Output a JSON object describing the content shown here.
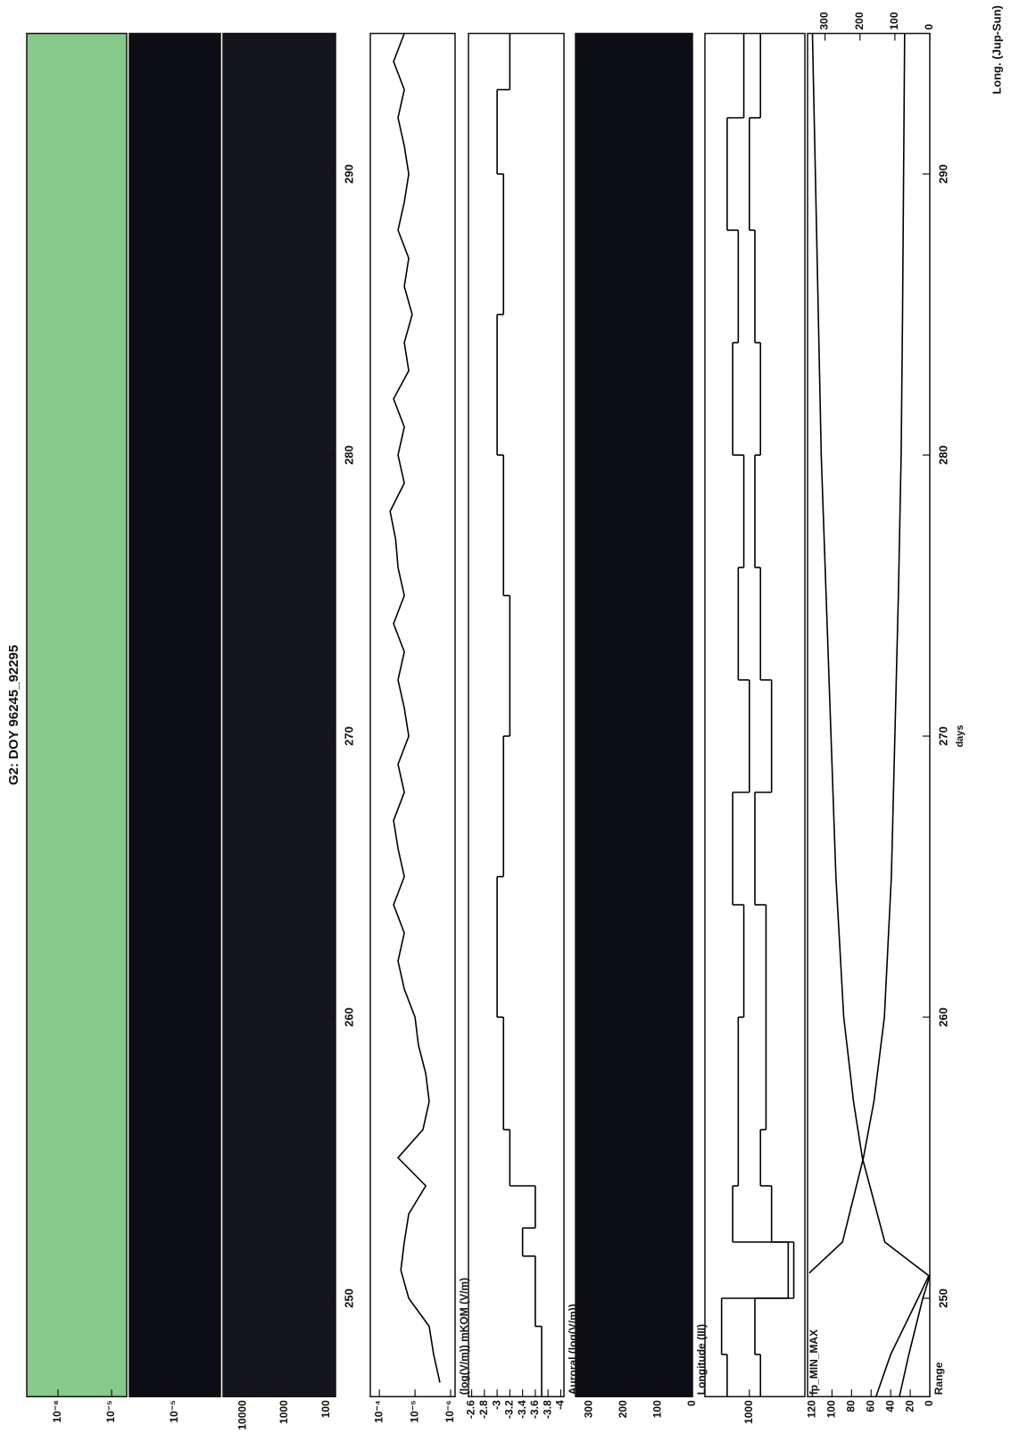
{
  "chart_data": [
    {
      "type": "heatmap",
      "title": "G2: DOY 96245_92295",
      "color": "#86c98a",
      "log": true,
      "ylim": [
        7e-05,
        1.8e-10
      ],
      "yticks": [
        {
          "value": 1e-08,
          "label": "10⁻⁸"
        },
        {
          "value": 1e-05,
          "label": "10⁻⁵"
        }
      ]
    },
    {
      "type": "heatmap",
      "color": "#0d0d16",
      "log": true,
      "ylim": [
        1e-06,
        0.0001
      ],
      "yticks": [
        {
          "value": 1e-05,
          "label": "10⁻⁵"
        }
      ]
    },
    {
      "type": "heatmap",
      "color": "#15151e",
      "log": true,
      "ylim": [
        60,
        30000
      ],
      "yticks": [
        10000,
        1000,
        100
      ],
      "xticks": [
        250,
        260,
        270,
        280,
        290
      ]
    },
    {
      "type": "line",
      "ylabel": "(log(V/m)) mKOM (V/m)",
      "log": true,
      "color": "#000000",
      "ylim": [
        7.5e-07,
        0.00018
      ],
      "yticks": [
        {
          "value": 0.0001,
          "label": "10⁻⁴"
        },
        {
          "value": 1e-05,
          "label": "10⁻⁵"
        },
        {
          "value": 1e-06,
          "label": "10⁻⁶"
        }
      ],
      "x": [
        247,
        248,
        249,
        250,
        251,
        252,
        253,
        254,
        255,
        256,
        257,
        258,
        259,
        260,
        261,
        262,
        263,
        264,
        265,
        266,
        267,
        268,
        269,
        270,
        271,
        272,
        273,
        274,
        275,
        276,
        277,
        278,
        279,
        280,
        281,
        282,
        283,
        284,
        285,
        286,
        287,
        288,
        289,
        290,
        291,
        292,
        293,
        294,
        295
      ],
      "values": [
        2e-06,
        3e-06,
        4e-06,
        1.5e-05,
        2.5e-05,
        2e-05,
        1.5e-05,
        5e-06,
        3e-05,
        6e-06,
        4e-06,
        5e-06,
        8e-06,
        1e-05,
        2e-05,
        3e-05,
        2e-05,
        4e-05,
        2e-05,
        3e-05,
        4e-05,
        2e-05,
        3e-05,
        1.5e-05,
        2e-05,
        3e-05,
        2e-05,
        4e-05,
        2e-05,
        3e-05,
        3.5e-05,
        5e-05,
        2e-05,
        3e-05,
        2e-05,
        4e-05,
        1.5e-05,
        2e-05,
        1.2e-05,
        2e-05,
        1.5e-05,
        3e-05,
        2e-05,
        1.5e-05,
        2e-05,
        3e-05,
        2e-05,
        4e-05,
        2e-05
      ]
    },
    {
      "type": "step",
      "ylabel": "Auroral (log(V/m))",
      "color": "#000000",
      "ylim": [
        -4.05,
        -2.55
      ],
      "yticks": [
        -2.6,
        -2.8,
        -3.0,
        -3.2,
        -3.4,
        -3.6,
        -3.8,
        -4.0
      ],
      "x": [
        246.5,
        249,
        251.5,
        252.5,
        254,
        256,
        260,
        265,
        270,
        275,
        280,
        285,
        290,
        293
      ],
      "values": [
        -3.7,
        -3.6,
        -3.4,
        -3.6,
        -3.2,
        -3.1,
        -3.0,
        -3.1,
        -3.2,
        -3.1,
        -3.0,
        -3.1,
        -3.0,
        -3.2
      ]
    },
    {
      "type": "heatmap",
      "ylabel": "Longitude (III)",
      "color": "#0d0d16",
      "ylim": [
        0,
        340
      ],
      "yticks": [
        300,
        200,
        100,
        0
      ]
    },
    {
      "type": "step",
      "ylabel": "fp_MIN_MAX",
      "ylim": [
        0,
        1800
      ],
      "yticks": [
        1000
      ],
      "x": [
        246.5,
        248,
        250,
        252,
        254,
        256,
        260,
        264,
        268,
        272,
        276,
        280,
        284,
        288,
        292
      ],
      "series": [
        {
          "color": "#000000",
          "values": [
            1400,
            1500,
            300,
            1300,
            1200,
            1200,
            1100,
            1300,
            1000,
            1200,
            1100,
            1300,
            1200,
            1400,
            1100
          ]
        },
        {
          "color": "#000000",
          "values": [
            800,
            900,
            200,
            600,
            800,
            700,
            700,
            900,
            600,
            800,
            900,
            800,
            900,
            1000,
            800
          ]
        }
      ]
    },
    {
      "type": "line",
      "ylabel": "Range",
      "y2label": "Long. (Jup-Sun)",
      "xlabel": "days",
      "xlim": [
        246.5,
        295
      ],
      "xticks": [
        250,
        260,
        270,
        280,
        290
      ],
      "ylim": [
        0,
        125
      ],
      "yticks": [
        0,
        20,
        40,
        60,
        80,
        100,
        120
      ],
      "y2lim": [
        0,
        350
      ],
      "y2ticks": [
        0,
        100,
        200,
        300
      ],
      "series": [
        {
          "color": "#000000",
          "x": [
            246.5,
            248,
            250,
            250.8,
            252,
            255,
            257,
            260,
            265,
            270,
            275,
            280,
            285,
            290,
            295
          ],
          "values": [
            55,
            40,
            12,
            1,
            46,
            69,
            78,
            88,
            96,
            101,
            106,
            111,
            114,
            117,
            120
          ]
        },
        {
          "color": "#000000",
          "axis": "y2",
          "x": [
            246.5,
            248,
            250,
            250.8,
            250.85,
            250.9,
            252,
            255,
            257,
            260,
            265,
            270,
            275,
            280,
            285,
            290,
            295
          ],
          "values": [
            87,
            60,
            20,
            0,
            null,
            345,
            250,
            190,
            160,
            130,
            110,
            100,
            90,
            82,
            78,
            75,
            72
          ]
        }
      ]
    }
  ]
}
